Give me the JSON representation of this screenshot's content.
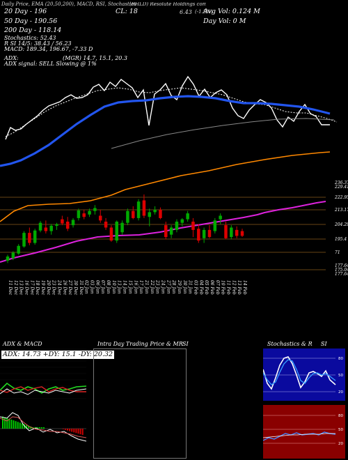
{
  "header": {
    "line1": "Daily Price, EMA (20,50,200), MACD, RSI, Stochastics",
    "ticker": "(RHLD) Resolute Holdings complete technical analysis [charts+indicators] | Buy/Sell Resolute Holdings",
    "ema20": "20 Day  - 196",
    "ema50": "50 Day  - 190.56",
    "ema200": "200 Day  - 118.14",
    "close": "CL: 18",
    "price": "6.43",
    "change": "(-1.5%)",
    "avg_vol": "Avg Vol: 0.124  M",
    "day_vol": "Day Vol: 0  M",
    "stoch": "Stochastics: 52.43",
    "rsi": "R  SI 14/5: 38.43 / 56.23",
    "macd": "MACD: 189.34, 196.67, -7.33 D",
    "adx": "ADX:",
    "adx_vals": "(MGR) 14.7,  15.1,  20.3",
    "signal": "ADX  signal: SELL  Slowing @ 1%"
  },
  "lower_panels": {
    "adx_title": "ADX  & MACD",
    "adx_values": "ADX: 14.73  +DY: 15.1  -DY: 20.32",
    "intraday_title": "Intra  Day Trading Price  & MR",
    "intraday_si": "SI",
    "stoch_title": "Stochastics & R",
    "stoch_si": "SI"
  },
  "chart_data": {
    "type": "candlestick",
    "price_levels": [
      "236.37",
      "229.41",
      "222.95",
      "213.17",
      "204.29",
      "195.4",
      "71",
      "177.64",
      "175.04",
      "177.64"
    ],
    "dates": [
      "11 Dec",
      "12 Dec",
      "13 Dec",
      "16 Dec",
      "17 Dec",
      "18 Dec",
      "19 Dec",
      "20 Dec",
      "23 Dec",
      "24 Dec",
      "26 Dec",
      "27 Dec",
      "30 Dec",
      "31 Dec",
      "02 Jan",
      "03 Jan",
      "06 Jan",
      "07 Jan",
      "08 Jan",
      "10 Jan",
      "13 Jan",
      "14 Jan",
      "15 Jan",
      "16 Jan",
      "17 Jan",
      "21 Jan",
      "22 Jan",
      "23 Jan",
      "24 Jan",
      "27 Jan",
      "28 Jan",
      "29 Jan",
      "30 Jan",
      "31 Jan",
      "03 Feb",
      "04 Feb",
      "05 Feb",
      "06 Feb",
      "07 Feb",
      "10 Feb",
      "11 Feb",
      "12 Feb",
      "13 Feb",
      "14 Feb"
    ],
    "candles": [
      {
        "o": 170.0,
        "h": 175.0,
        "l": 168.0,
        "c": 173.5,
        "up": true
      },
      {
        "o": 172.0,
        "h": 178.0,
        "l": 170.5,
        "c": 176.8,
        "up": true
      },
      {
        "o": 176.0,
        "h": 184.0,
        "l": 175.0,
        "c": 182.5,
        "up": true
      },
      {
        "o": 182.0,
        "h": 195.0,
        "l": 181.0,
        "c": 193.5,
        "up": true
      },
      {
        "o": 193.5,
        "h": 198.0,
        "l": 183.0,
        "c": 185.0,
        "up": false
      },
      {
        "o": 185.0,
        "h": 197.0,
        "l": 183.5,
        "c": 195.5,
        "up": true
      },
      {
        "o": 195.5,
        "h": 203.5,
        "l": 194.0,
        "c": 202.0,
        "up": true
      },
      {
        "o": 198.0,
        "h": 204.0,
        "l": 193.0,
        "c": 195.0,
        "up": false
      },
      {
        "o": 195.0,
        "h": 201.0,
        "l": 192.0,
        "c": 199.5,
        "up": true
      },
      {
        "o": 199.5,
        "h": 202.0,
        "l": 196.0,
        "c": 200.8,
        "up": true
      },
      {
        "o": 205.0,
        "h": 208.0,
        "l": 200.0,
        "c": 201.5,
        "up": false
      },
      {
        "o": 203.0,
        "h": 207.0,
        "l": 195.0,
        "c": 197.0,
        "up": false
      },
      {
        "o": 200.0,
        "h": 206.0,
        "l": 198.0,
        "c": 204.5,
        "up": true
      },
      {
        "o": 206.0,
        "h": 214.0,
        "l": 204.0,
        "c": 212.5,
        "up": true
      },
      {
        "o": 210.0,
        "h": 213.0,
        "l": 205.0,
        "c": 207.0,
        "up": false
      },
      {
        "o": 209.0,
        "h": 214.0,
        "l": 207.0,
        "c": 212.0,
        "up": true
      },
      {
        "o": 212.0,
        "h": 217.0,
        "l": 209.0,
        "c": 214.5,
        "up": true
      },
      {
        "o": 208.0,
        "h": 213.0,
        "l": 202.0,
        "c": 204.0,
        "up": false
      },
      {
        "o": 203.0,
        "h": 206.0,
        "l": 196.0,
        "c": 198.0,
        "up": false
      },
      {
        "o": 198.0,
        "h": 200.0,
        "l": 186.0,
        "c": 187.0,
        "up": false
      },
      {
        "o": 187.0,
        "h": 204.0,
        "l": 185.0,
        "c": 203.0,
        "up": true
      },
      {
        "o": 194.0,
        "h": 204.0,
        "l": 192.0,
        "c": 202.0,
        "up": true
      },
      {
        "o": 202.0,
        "h": 214.0,
        "l": 200.0,
        "c": 212.0,
        "up": true
      },
      {
        "o": 212.0,
        "h": 216.0,
        "l": 205.0,
        "c": 206.0,
        "up": false
      },
      {
        "o": 206.0,
        "h": 222.0,
        "l": 204.0,
        "c": 220.0,
        "up": true
      },
      {
        "o": 221.0,
        "h": 226.0,
        "l": 206.0,
        "c": 208.0,
        "up": false
      },
      {
        "o": 207.0,
        "h": 214.0,
        "l": 199.0,
        "c": 211.0,
        "up": true
      },
      {
        "o": 211.0,
        "h": 216.0,
        "l": 209.0,
        "c": 213.0,
        "up": true
      },
      {
        "o": 213.0,
        "h": 215.0,
        "l": 205.0,
        "c": 206.0,
        "up": false
      },
      {
        "o": 200.0,
        "h": 203.0,
        "l": 188.0,
        "c": 190.0,
        "up": false
      },
      {
        "o": 192.0,
        "h": 200.0,
        "l": 189.0,
        "c": 198.0,
        "up": true
      },
      {
        "o": 196.0,
        "h": 205.0,
        "l": 194.0,
        "c": 203.0,
        "up": true
      },
      {
        "o": 202.0,
        "h": 206.0,
        "l": 199.0,
        "c": 205.0,
        "up": true
      },
      {
        "o": 205.0,
        "h": 212.0,
        "l": 203.0,
        "c": 210.0,
        "up": true
      },
      {
        "o": 203.0,
        "h": 206.0,
        "l": 190.0,
        "c": 196.0,
        "up": false
      },
      {
        "o": 197.0,
        "h": 201.0,
        "l": 185.0,
        "c": 187.0,
        "up": false
      },
      {
        "o": 189.0,
        "h": 198.0,
        "l": 185.0,
        "c": 196.0,
        "up": true
      },
      {
        "o": 196.0,
        "h": 200.0,
        "l": 189.0,
        "c": 190.0,
        "up": false
      },
      {
        "o": 195.0,
        "h": 206.0,
        "l": 193.0,
        "c": 204.0,
        "up": true
      },
      {
        "o": 205.0,
        "h": 210.0,
        "l": 201.0,
        "c": 208.0,
        "up": true
      },
      {
        "o": 200.0,
        "h": 203.0,
        "l": 188.0,
        "c": 189.0,
        "up": false
      },
      {
        "o": 190.0,
        "h": 200.0,
        "l": 188.0,
        "c": 198.0,
        "up": true
      },
      {
        "o": 196.0,
        "h": 199.0,
        "l": 189.0,
        "c": 191.0,
        "up": false
      },
      {
        "o": 195.0,
        "h": 197.0,
        "l": 190.0,
        "c": 191.0,
        "up": false
      }
    ],
    "colors": {
      "bg": "#000000",
      "up": "#00aa00",
      "down": "#dd0000",
      "ema20": "#ffffff",
      "ema50": "#2255ee",
      "ema200": "#ff8800",
      "ema_magenta": "#dd22dd",
      "level": "#8a5a1c"
    }
  }
}
